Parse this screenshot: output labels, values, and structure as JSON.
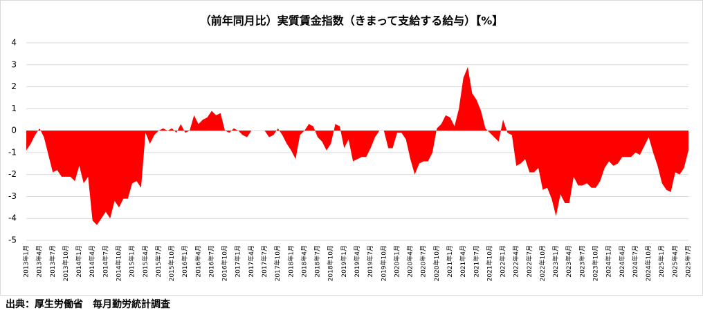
{
  "chart_data": {
    "type": "area",
    "title": "（前年同月比）実質賃金指数（きまって支給する給与）【%】",
    "source": "出典：厚生労働省　毎月勤労統計調査",
    "color": "#ff0000",
    "categories": [
      "2013年1月",
      null,
      null,
      "2013年4月",
      null,
      null,
      "2013年7月",
      null,
      null,
      "2013年10月",
      null,
      null,
      "2014年1月",
      null,
      null,
      "2014年4月",
      null,
      null,
      "2014年7月",
      null,
      null,
      "2014年10月",
      null,
      null,
      "2015年1月",
      null,
      null,
      "2015年4月",
      null,
      null,
      "2015年7月",
      null,
      null,
      "2015年10月",
      null,
      null,
      "2016年1月",
      null,
      null,
      "2016年4月",
      null,
      null,
      "2016年7月",
      null,
      null,
      "2016年10月",
      null,
      null,
      "2017年1月",
      null,
      null,
      "2017年4月",
      null,
      null,
      "2017年7月",
      null,
      null,
      "2017年10月",
      null,
      null,
      "2018年1月",
      null,
      null,
      "2018年4月",
      null,
      null,
      "2018年7月",
      null,
      null,
      "2018年10月",
      null,
      null,
      "2019年1月",
      null,
      null,
      "2019年4月",
      null,
      null,
      "2019年7月",
      null,
      null,
      "2019年10月",
      null,
      null,
      "2020年1月",
      null,
      null,
      "2020年4月",
      null,
      null,
      "2020年7月",
      null,
      null,
      "2020年10月",
      null,
      null,
      "2021年1月",
      null,
      null,
      "2021年4月",
      null,
      null,
      "2021年7月",
      null,
      null,
      "2021年10月",
      null,
      null,
      "2022年1月",
      null,
      null,
      "2022年4月",
      null,
      null,
      "2022年7月",
      null,
      null,
      "2022年10月",
      null,
      null,
      "2023年1月",
      null,
      null,
      "2023年4月",
      null,
      null,
      "2023年7月",
      null,
      null,
      "2023年10月",
      null,
      null,
      "2024年1月",
      null,
      null,
      "2024年4月",
      null,
      null,
      "2024年7月",
      null,
      null,
      "2024年10月",
      null,
      null,
      "2025年1月",
      null,
      null,
      "2025年4月",
      null,
      null,
      "2025年7月"
    ],
    "values": [
      -0.9,
      -0.6,
      -0.2,
      0.1,
      -0.3,
      -1.1,
      -1.9,
      -1.8,
      -2.1,
      -2.1,
      -2.1,
      -2.3,
      -1.6,
      -2.4,
      -2.1,
      -4.1,
      -4.3,
      -4.0,
      -3.7,
      -4.0,
      -3.2,
      -3.5,
      -3.1,
      -3.1,
      -2.4,
      -2.3,
      -2.6,
      -0.1,
      -0.6,
      -0.2,
      0.0,
      0.1,
      0.0,
      0.1,
      -0.1,
      0.3,
      -0.1,
      0.0,
      0.7,
      0.3,
      0.5,
      0.6,
      0.9,
      0.7,
      0.8,
      0.0,
      -0.1,
      0.1,
      0.0,
      -0.2,
      -0.3,
      0.0,
      0.0,
      0.0,
      0.0,
      -0.3,
      -0.2,
      0.1,
      -0.2,
      -0.6,
      -0.9,
      -1.3,
      -0.2,
      0.0,
      0.3,
      0.2,
      -0.3,
      -0.5,
      -0.9,
      -0.6,
      0.3,
      0.2,
      -0.8,
      -0.4,
      -1.4,
      -1.3,
      -1.2,
      -1.2,
      -0.8,
      -0.3,
      0.0,
      0.0,
      -0.8,
      -0.8,
      -0.1,
      -0.1,
      -0.4,
      -1.3,
      -2.0,
      -1.5,
      -1.4,
      -1.4,
      -1.0,
      0.1,
      0.3,
      0.7,
      0.6,
      0.2,
      1.0,
      2.4,
      2.9,
      1.7,
      1.4,
      0.9,
      0.1,
      -0.1,
      -0.3,
      -0.5,
      0.5,
      -0.1,
      -0.2,
      -1.6,
      -1.5,
      -1.3,
      -1.9,
      -1.9,
      -1.7,
      -2.7,
      -2.6,
      -3.1,
      -3.9,
      -2.9,
      -3.3,
      -3.3,
      -2.1,
      -2.5,
      -2.5,
      -2.4,
      -2.6,
      -2.6,
      -2.3,
      -1.7,
      -1.4,
      -1.6,
      -1.5,
      -1.2,
      -1.2,
      -1.2,
      -1.0,
      -1.1,
      -0.7,
      -0.3,
      -1.0,
      -1.6,
      -2.4,
      -2.7,
      -2.8,
      -1.9,
      -2.0,
      -1.7,
      -0.9
    ],
    "ylim": [
      -5,
      4
    ],
    "yticks": [
      -5,
      -4,
      -3,
      -2,
      -1,
      0,
      1,
      2,
      3,
      4
    ],
    "grid": true
  }
}
